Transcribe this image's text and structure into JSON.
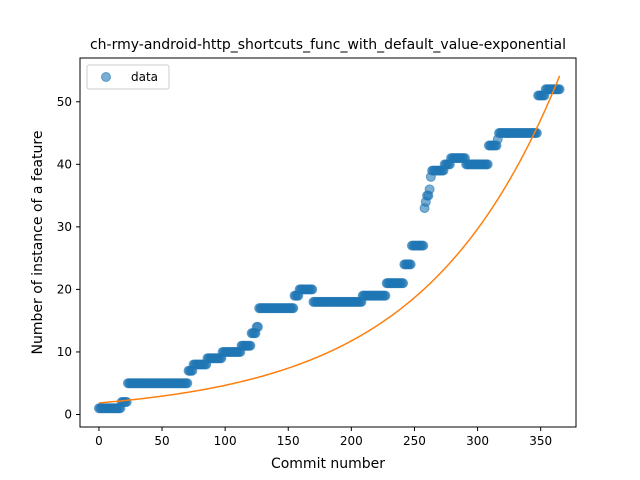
{
  "chart_data": {
    "type": "scatter",
    "title": "ch-rmy-android-http_shortcuts_func_with_default_value-exponential",
    "xlabel": "Commit number",
    "ylabel": "Number of instance of a feature",
    "xlim": [
      -15,
      378
    ],
    "ylim": [
      -2,
      57
    ],
    "xticks": [
      0,
      50,
      100,
      150,
      200,
      250,
      300,
      350
    ],
    "yticks": [
      0,
      10,
      20,
      30,
      40,
      50
    ],
    "grid": false,
    "legend": {
      "position": "top-left",
      "entries": [
        "data"
      ]
    },
    "colors": {
      "data": "#1f77b4",
      "fit": "#ff7f0e"
    },
    "series": [
      {
        "name": "data",
        "kind": "scatter",
        "segments": [
          {
            "x_start": 0,
            "x_end": 17,
            "y": 1
          },
          {
            "x_start": 18,
            "x_end": 22,
            "y": 2
          },
          {
            "x_start": 23,
            "x_end": 70,
            "y": 5
          },
          {
            "x_start": 71,
            "x_end": 74,
            "y": 7
          },
          {
            "x_start": 75,
            "x_end": 85,
            "y": 8
          },
          {
            "x_start": 86,
            "x_end": 97,
            "y": 9
          },
          {
            "x_start": 98,
            "x_end": 112,
            "y": 10
          },
          {
            "x_start": 113,
            "x_end": 120,
            "y": 11
          },
          {
            "x_start": 121,
            "x_end": 124,
            "y": 13
          },
          {
            "x_start": 125,
            "x_end": 126,
            "y": 14
          },
          {
            "x_start": 127,
            "x_end": 154,
            "y": 17
          },
          {
            "x_start": 155,
            "x_end": 158,
            "y": 19
          },
          {
            "x_start": 159,
            "x_end": 169,
            "y": 20
          },
          {
            "x_start": 170,
            "x_end": 208,
            "y": 18
          },
          {
            "x_start": 209,
            "x_end": 227,
            "y": 19
          },
          {
            "x_start": 228,
            "x_end": 241,
            "y": 21
          },
          {
            "x_start": 242,
            "x_end": 247,
            "y": 24
          },
          {
            "x_start": 248,
            "x_end": 257,
            "y": 27
          },
          {
            "x_start": 258,
            "x_end": 258,
            "y": 33
          },
          {
            "x_start": 259,
            "x_end": 259,
            "y": 34
          },
          {
            "x_start": 260,
            "x_end": 261,
            "y": 35
          },
          {
            "x_start": 262,
            "x_end": 262,
            "y": 36
          },
          {
            "x_start": 263,
            "x_end": 263,
            "y": 38
          },
          {
            "x_start": 264,
            "x_end": 273,
            "y": 39
          },
          {
            "x_start": 274,
            "x_end": 278,
            "y": 40
          },
          {
            "x_start": 279,
            "x_end": 290,
            "y": 41
          },
          {
            "x_start": 291,
            "x_end": 308,
            "y": 40
          },
          {
            "x_start": 309,
            "x_end": 315,
            "y": 43
          },
          {
            "x_start": 316,
            "x_end": 316,
            "y": 44
          },
          {
            "x_start": 317,
            "x_end": 347,
            "y": 45
          },
          {
            "x_start": 348,
            "x_end": 353,
            "y": 51
          },
          {
            "x_start": 354,
            "x_end": 365,
            "y": 52
          }
        ]
      },
      {
        "name": "",
        "kind": "line",
        "model": "exponential",
        "a": 1.85,
        "b": 0.00925,
        "x_range": [
          0,
          365
        ]
      }
    ]
  }
}
